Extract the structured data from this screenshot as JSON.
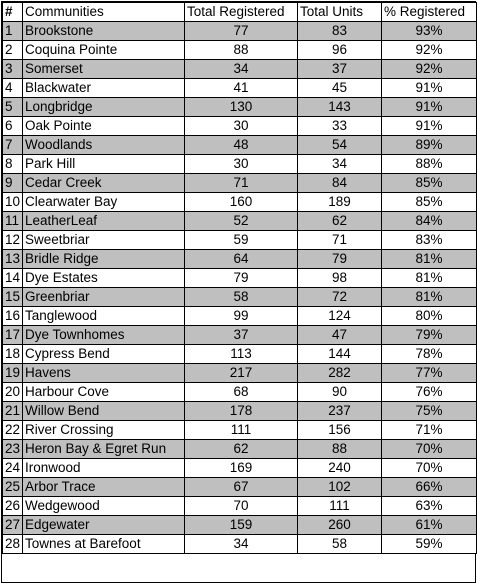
{
  "header": {
    "index": "#",
    "community": "Communities",
    "registered": "Total Registered",
    "units": "Total Units",
    "percent": "% Registered"
  },
  "rows": [
    {
      "n": "1",
      "name": "Brookstone",
      "registered": "77",
      "units": "83",
      "percent": "93%"
    },
    {
      "n": "2",
      "name": "Coquina Pointe",
      "registered": "88",
      "units": "96",
      "percent": "92%"
    },
    {
      "n": "3",
      "name": "Somerset",
      "registered": "34",
      "units": "37",
      "percent": "92%"
    },
    {
      "n": "4",
      "name": "Blackwater",
      "registered": "41",
      "units": "45",
      "percent": "91%"
    },
    {
      "n": "5",
      "name": "Longbridge",
      "registered": "130",
      "units": "143",
      "percent": "91%"
    },
    {
      "n": "6",
      "name": "Oak Pointe",
      "registered": "30",
      "units": "33",
      "percent": "91%"
    },
    {
      "n": "7",
      "name": "Woodlands",
      "registered": "48",
      "units": "54",
      "percent": "89%"
    },
    {
      "n": "8",
      "name": "Park Hill",
      "registered": "30",
      "units": "34",
      "percent": "88%"
    },
    {
      "n": "9",
      "name": "Cedar Creek",
      "registered": "71",
      "units": "84",
      "percent": "85%"
    },
    {
      "n": "10",
      "name": "Clearwater Bay",
      "registered": "160",
      "units": "189",
      "percent": "85%"
    },
    {
      "n": "11",
      "name": "LeatherLeaf",
      "registered": "52",
      "units": "62",
      "percent": "84%"
    },
    {
      "n": "12",
      "name": "Sweetbriar",
      "registered": "59",
      "units": "71",
      "percent": "83%"
    },
    {
      "n": "13",
      "name": "Bridle Ridge",
      "registered": "64",
      "units": "79",
      "percent": "81%"
    },
    {
      "n": "14",
      "name": "Dye Estates",
      "registered": "79",
      "units": "98",
      "percent": "81%"
    },
    {
      "n": "15",
      "name": "Greenbriar",
      "registered": "58",
      "units": "72",
      "percent": "81%"
    },
    {
      "n": "16",
      "name": "Tanglewood",
      "registered": "99",
      "units": "124",
      "percent": "80%"
    },
    {
      "n": "17",
      "name": "Dye Townhomes",
      "registered": "37",
      "units": "47",
      "percent": "79%"
    },
    {
      "n": "18",
      "name": "Cypress Bend",
      "registered": "113",
      "units": "144",
      "percent": "78%"
    },
    {
      "n": "19",
      "name": "Havens",
      "registered": "217",
      "units": "282",
      "percent": "77%"
    },
    {
      "n": "20",
      "name": "Harbour Cove",
      "registered": "68",
      "units": "90",
      "percent": "76%"
    },
    {
      "n": "21",
      "name": "Willow Bend",
      "registered": "178",
      "units": "237",
      "percent": "75%"
    },
    {
      "n": "22",
      "name": "River Crossing",
      "registered": "111",
      "units": "156",
      "percent": "71%"
    },
    {
      "n": "23",
      "name": "Heron Bay & Egret Run",
      "registered": "62",
      "units": "88",
      "percent": "70%"
    },
    {
      "n": "24",
      "name": "Ironwood",
      "registered": "169",
      "units": "240",
      "percent": "70%"
    },
    {
      "n": "25",
      "name": "Arbor Trace",
      "registered": "67",
      "units": "102",
      "percent": "66%"
    },
    {
      "n": "26",
      "name": "Wedgewood",
      "registered": "70",
      "units": "111",
      "percent": "63%"
    },
    {
      "n": "27",
      "name": "Edgewater",
      "registered": "159",
      "units": "260",
      "percent": "61%"
    },
    {
      "n": "28",
      "name": "Townes at Barefoot",
      "registered": "34",
      "units": "58",
      "percent": "59%"
    }
  ],
  "colors": {
    "shaded_row": "#bfbfbf",
    "plain_row": "#ffffff",
    "border": "#000000"
  }
}
